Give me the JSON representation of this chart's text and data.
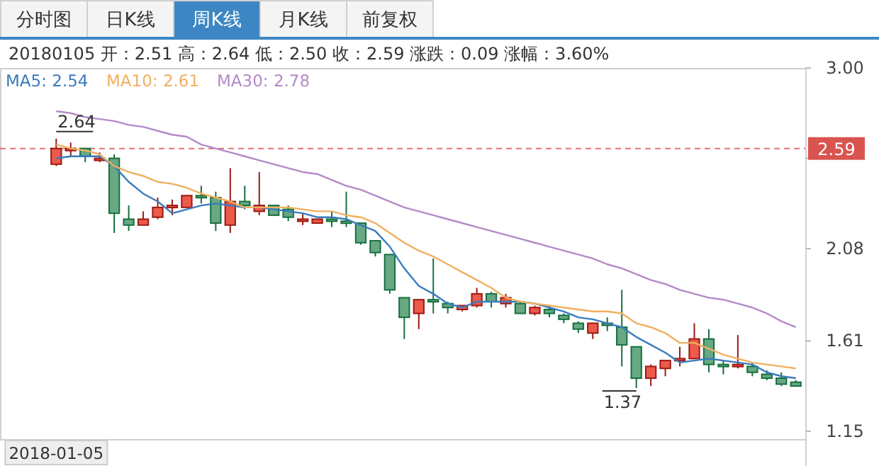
{
  "chart_data": {
    "type": "candlestick",
    "title": "20180105 开：2.51 高：2.64 低：2.50 收：2.59 涨跌：0.09 涨幅：3.60%",
    "annotations": [
      "分时图",
      "日K线",
      "周K线",
      "月K线",
      "前复权",
      "2.64",
      "1.37"
    ],
    "categories": [
      "2018-01-05",
      null,
      null,
      null,
      null,
      null,
      null,
      null,
      null,
      null,
      null,
      null,
      null,
      null,
      null,
      null,
      null,
      null,
      null,
      null,
      null,
      null,
      null,
      null,
      null,
      null,
      null,
      null,
      null,
      null,
      null,
      null,
      null,
      null,
      null,
      null,
      null,
      null,
      null,
      null,
      null,
      null,
      null,
      null,
      null,
      null,
      null,
      null,
      null,
      null,
      null,
      null
    ],
    "ohlc": [
      [
        2.51,
        2.64,
        2.5,
        2.59
      ],
      [
        2.58,
        2.62,
        2.55,
        2.59
      ],
      [
        2.59,
        2.59,
        2.52,
        2.55
      ],
      [
        2.53,
        2.57,
        2.52,
        2.54
      ],
      [
        2.54,
        2.56,
        2.16,
        2.26
      ],
      [
        2.23,
        2.3,
        2.17,
        2.2
      ],
      [
        2.2,
        2.27,
        2.2,
        2.23
      ],
      [
        2.24,
        2.34,
        2.23,
        2.29
      ],
      [
        2.29,
        2.33,
        2.25,
        2.3
      ],
      [
        2.29,
        2.35,
        2.29,
        2.35
      ],
      [
        2.35,
        2.4,
        2.31,
        2.34
      ],
      [
        2.34,
        2.37,
        2.17,
        2.21
      ],
      [
        2.2,
        2.49,
        2.16,
        2.32
      ],
      [
        2.32,
        2.4,
        2.28,
        2.3
      ],
      [
        2.27,
        2.47,
        2.25,
        2.3
      ],
      [
        2.3,
        2.3,
        2.25,
        2.25
      ],
      [
        2.28,
        2.3,
        2.22,
        2.24
      ],
      [
        2.22,
        2.26,
        2.2,
        2.23
      ],
      [
        2.21,
        2.23,
        2.21,
        2.23
      ],
      [
        2.23,
        2.27,
        2.19,
        2.22
      ],
      [
        2.22,
        2.37,
        2.19,
        2.21
      ],
      [
        2.21,
        2.21,
        2.1,
        2.11
      ],
      [
        2.12,
        2.12,
        2.04,
        2.06
      ],
      [
        2.05,
        2.05,
        1.85,
        1.87
      ],
      [
        1.83,
        1.83,
        1.62,
        1.73
      ],
      [
        1.75,
        1.82,
        1.67,
        1.82
      ],
      [
        1.82,
        2.03,
        1.75,
        1.81
      ],
      [
        1.8,
        1.81,
        1.75,
        1.78
      ],
      [
        1.77,
        1.79,
        1.76,
        1.79
      ],
      [
        1.79,
        1.88,
        1.78,
        1.85
      ],
      [
        1.85,
        1.86,
        1.78,
        1.81
      ],
      [
        1.8,
        1.85,
        1.78,
        1.83
      ],
      [
        1.8,
        1.81,
        1.75,
        1.75
      ],
      [
        1.75,
        1.79,
        1.74,
        1.78
      ],
      [
        1.77,
        1.79,
        1.73,
        1.75
      ],
      [
        1.74,
        1.75,
        1.7,
        1.72
      ],
      [
        1.7,
        1.71,
        1.65,
        1.67
      ],
      [
        1.65,
        1.7,
        1.62,
        1.7
      ],
      [
        1.7,
        1.73,
        1.66,
        1.69
      ],
      [
        1.68,
        1.87,
        1.48,
        1.59
      ],
      [
        1.58,
        1.58,
        1.37,
        1.42
      ],
      [
        1.42,
        1.49,
        1.38,
        1.48
      ],
      [
        1.47,
        1.51,
        1.43,
        1.51
      ],
      [
        1.51,
        1.58,
        1.48,
        1.52
      ],
      [
        1.52,
        1.7,
        1.52,
        1.62
      ],
      [
        1.62,
        1.67,
        1.45,
        1.49
      ],
      [
        1.49,
        1.51,
        1.44,
        1.48
      ],
      [
        1.48,
        1.64,
        1.47,
        1.49
      ],
      [
        1.48,
        1.5,
        1.43,
        1.45
      ],
      [
        1.44,
        1.46,
        1.41,
        1.42
      ],
      [
        1.42,
        1.45,
        1.38,
        1.39
      ],
      [
        1.4,
        1.41,
        1.38,
        1.38
      ]
    ],
    "series": [
      {
        "type": "line",
        "name": "MA5: 2.54",
        "color": "#3a7bbd",
        "values": [
          2.54,
          2.55,
          2.55,
          2.55,
          2.5,
          2.42,
          2.36,
          2.32,
          2.26,
          2.28,
          2.3,
          2.31,
          2.3,
          2.29,
          2.29,
          2.28,
          2.27,
          2.26,
          2.24,
          2.24,
          2.23,
          2.2,
          2.17,
          2.09,
          1.98,
          1.89,
          1.85,
          1.8,
          1.78,
          1.81,
          1.81,
          1.81,
          1.81,
          1.8,
          1.78,
          1.76,
          1.73,
          1.72,
          1.7,
          1.68,
          1.63,
          1.59,
          1.55,
          1.5,
          1.51,
          1.52,
          1.51,
          1.5,
          1.49,
          1.45,
          1.43,
          1.42
        ]
      },
      {
        "type": "line",
        "name": "MA10: 2.61",
        "color": "#f0b060",
        "values": [
          2.61,
          2.59,
          2.58,
          2.56,
          2.5,
          2.47,
          2.45,
          2.42,
          2.41,
          2.39,
          2.36,
          2.34,
          2.32,
          2.29,
          2.29,
          2.29,
          2.29,
          2.28,
          2.27,
          2.27,
          2.25,
          2.24,
          2.21,
          2.16,
          2.11,
          2.07,
          2.04,
          2.0,
          1.96,
          1.92,
          1.88,
          1.83,
          1.81,
          1.8,
          1.79,
          1.78,
          1.77,
          1.76,
          1.76,
          1.75,
          1.7,
          1.68,
          1.65,
          1.6,
          1.6,
          1.57,
          1.54,
          1.52,
          1.5,
          1.49,
          1.48,
          1.47
        ]
      },
      {
        "type": "line",
        "name": "MA30: 2.78",
        "color": "#b48ac8",
        "values": [
          2.78,
          2.77,
          2.75,
          2.74,
          2.73,
          2.71,
          2.7,
          2.68,
          2.66,
          2.65,
          2.61,
          2.59,
          2.57,
          2.55,
          2.53,
          2.51,
          2.49,
          2.47,
          2.46,
          2.43,
          2.4,
          2.38,
          2.35,
          2.32,
          2.29,
          2.27,
          2.25,
          2.23,
          2.21,
          2.19,
          2.17,
          2.15,
          2.13,
          2.11,
          2.09,
          2.07,
          2.05,
          2.03,
          2.0,
          1.98,
          1.95,
          1.92,
          1.9,
          1.87,
          1.85,
          1.83,
          1.82,
          1.8,
          1.78,
          1.75,
          1.71,
          1.68
        ]
      }
    ],
    "ylim": [
      1.11,
      3.0
    ],
    "yticks": [
      {
        "value": 3.0,
        "label": "3.00"
      },
      {
        "value": 2.54,
        "label": null
      },
      {
        "value": 2.08,
        "label": "2.08"
      },
      {
        "value": 1.61,
        "label": "1.61"
      },
      {
        "value": 1.15,
        "label": "1.15"
      }
    ],
    "ref_lines": [
      {
        "axis": "y",
        "value": 2.59,
        "label": "2.59",
        "color": "#d9534f",
        "line_style": "dashed"
      }
    ],
    "legend": "top left"
  }
}
